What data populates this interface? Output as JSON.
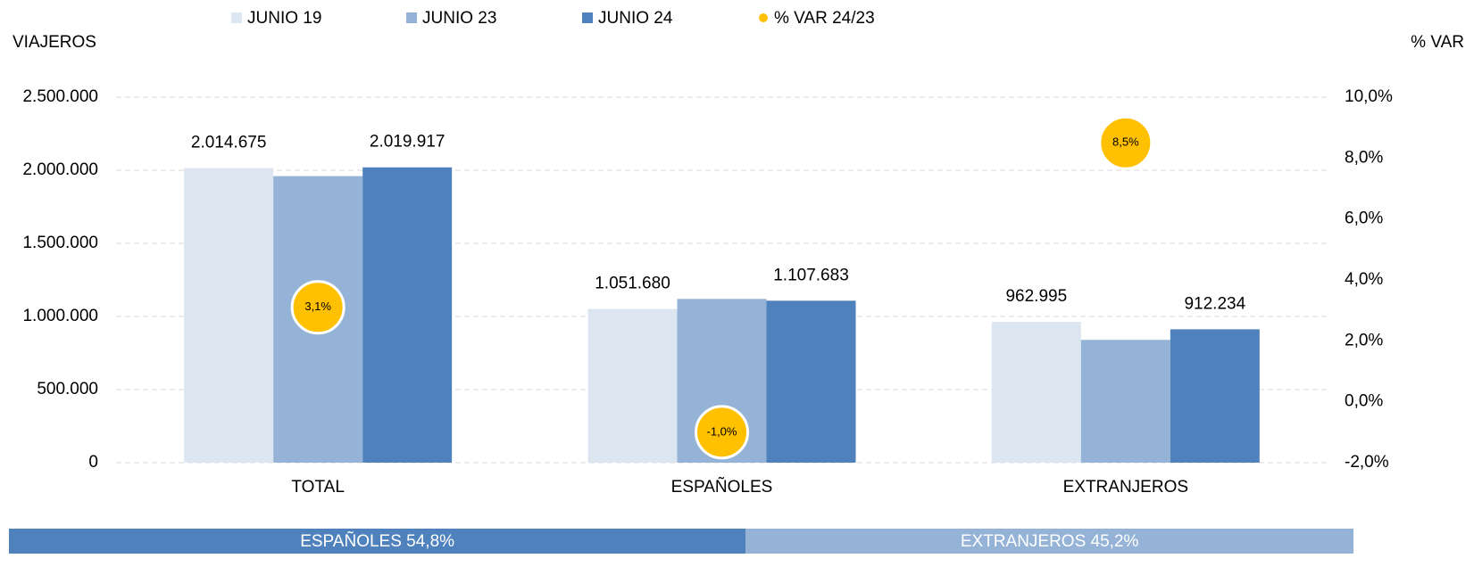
{
  "chart_data": {
    "type": "bar",
    "categories": [
      "TOTAL",
      "ESPAÑOLES",
      "EXTRANJEROS"
    ],
    "ylabel": "VIAJEROS",
    "y2label": "% VAR",
    "ylim": [
      0,
      2500000
    ],
    "yticks": [
      0,
      {
        "value": 500000,
        "label": "500.000"
      },
      {
        "value": 1000000,
        "label": "1.000.000"
      },
      {
        "value": 1500000,
        "label": "1.500.000"
      },
      {
        "value": 2000000,
        "label": "2.000.000"
      },
      {
        "value": 2500000,
        "label": "2.500.000"
      }
    ],
    "y2lim": [
      -2,
      10
    ],
    "y2ticks": [
      {
        "value": -2,
        "label": "-2,0%"
      },
      {
        "value": 0,
        "label": "0,0%"
      },
      {
        "value": 2,
        "label": "2,0%"
      },
      {
        "value": 4,
        "label": "4,0%"
      },
      {
        "value": 6,
        "label": "6,0%"
      },
      {
        "value": 8,
        "label": "8,0%"
      },
      {
        "value": 10,
        "label": "10,0%"
      }
    ],
    "grid": true,
    "legend": "top",
    "series": [
      {
        "name": "JUNIO 19",
        "color": "#dce6f1",
        "values": [
          2014675,
          1051680,
          962995
        ],
        "value_labels": [
          "2.014.675",
          "1.051.680",
          "962.995"
        ]
      },
      {
        "name": "JUNIO 23",
        "color": "#95b3d7",
        "values": [
          1960000,
          1120000,
          840000
        ]
      },
      {
        "name": "JUNIO 24",
        "color": "#4f81bd",
        "values": [
          2019917,
          1107683,
          912234
        ],
        "value_labels": [
          "2.019.917",
          "1.107.683",
          "912.234"
        ]
      },
      {
        "name": "% VAR 24/23",
        "type": "scatter",
        "axis": "y2",
        "color": "#ffc000",
        "values": [
          3.1,
          -1.0,
          8.5
        ],
        "value_labels": [
          "3,1%",
          "-1,0%",
          "8,5%"
        ]
      }
    ],
    "share_bar": [
      {
        "label": "ESPAÑOLES 54,8%",
        "value": 54.8,
        "color": "#4f81bd"
      },
      {
        "label": "EXTRANJEROS 45,2%",
        "value": 45.2,
        "color": "#95b3d7"
      }
    ]
  }
}
